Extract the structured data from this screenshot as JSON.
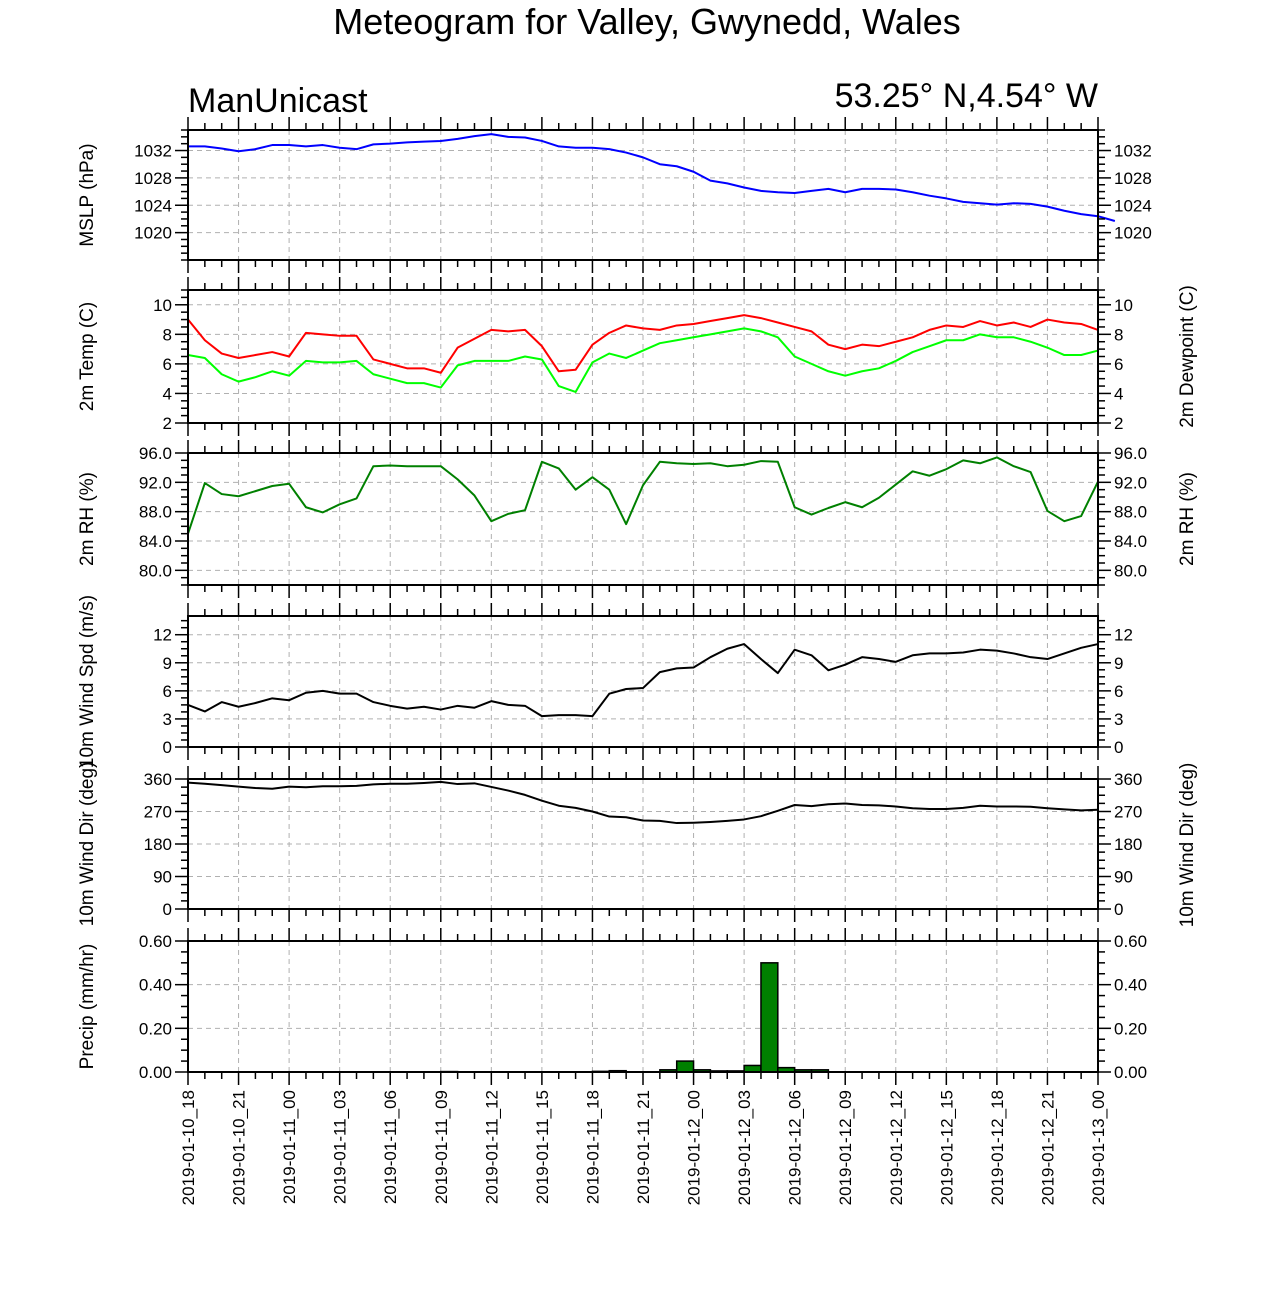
{
  "title": "Meteogram for Valley, Gwynedd, Wales",
  "model_label": "ManUnicast",
  "location_label": "53.25° N,4.54° W",
  "x_tick_labels": [
    "2019-01-10_18",
    "2019-01-10_21",
    "2019-01-11_00",
    "2019-01-11_03",
    "2019-01-11_06",
    "2019-01-11_09",
    "2019-01-11_12",
    "2019-01-11_15",
    "2019-01-11_18",
    "2019-01-11_21",
    "2019-01-12_00",
    "2019-01-12_03",
    "2019-01-12_06",
    "2019-01-12_09",
    "2019-01-12_12",
    "2019-01-12_15",
    "2019-01-12_18",
    "2019-01-12_21",
    "2019-01-13_00"
  ],
  "chart_data": [
    {
      "type": "line",
      "ylabel": "MSLP (hPa)",
      "ylim": [
        1016,
        1035
      ],
      "yticks": [
        1020,
        1024,
        1028,
        1032
      ],
      "ytick_labels": [
        "1020",
        "1024",
        "1028",
        "1032"
      ],
      "grid": true,
      "series": [
        {
          "color": "#0000ff",
          "values": [
            1032.6,
            1032.6,
            1032.3,
            1031.9,
            1032.2,
            1032.8,
            1032.8,
            1032.6,
            1032.8,
            1032.4,
            1032.2,
            1032.9,
            1033.0,
            1033.2,
            1033.3,
            1033.4,
            1033.7,
            1034.1,
            1034.4,
            1034.0,
            1033.9,
            1033.4,
            1032.6,
            1032.4,
            1032.4,
            1032.2,
            1031.7,
            1031.0,
            1030.0,
            1029.7,
            1028.9,
            1027.6,
            1027.2,
            1026.6,
            1026.1,
            1025.9,
            1025.8,
            1026.1,
            1026.4,
            1025.9,
            1026.4,
            1026.4,
            1026.3,
            1025.9,
            1025.4,
            1025.0,
            1024.5,
            1024.3,
            1024.1,
            1024.3,
            1024.2,
            1023.8,
            1023.2,
            1022.7,
            1022.4,
            1021.7
          ]
        }
      ]
    },
    {
      "type": "line",
      "ylabel": "2m Temp (C)",
      "ylabel_right": "2m Dewpoint (C)",
      "ylim": [
        2,
        11
      ],
      "yticks": [
        2,
        4,
        6,
        8,
        10
      ],
      "ytick_labels": [
        "2",
        "4",
        "6",
        "8",
        "10"
      ],
      "grid": true,
      "series": [
        {
          "color": "#ff0000",
          "values": [
            9.0,
            7.6,
            6.7,
            6.4,
            6.6,
            6.8,
            6.5,
            8.1,
            8.0,
            7.9,
            7.9,
            6.3,
            6.0,
            5.7,
            5.7,
            5.4,
            7.1,
            7.7,
            8.3,
            8.2,
            8.3,
            7.2,
            5.5,
            5.6,
            7.3,
            8.1,
            8.6,
            8.4,
            8.3,
            8.6,
            8.7,
            8.9,
            9.1,
            9.3,
            9.1,
            8.8,
            8.5,
            8.2,
            7.3,
            7.0,
            7.3,
            7.2,
            7.5,
            7.8,
            8.3,
            8.6,
            8.5,
            8.9,
            8.6,
            8.8,
            8.5,
            9.0,
            8.8,
            8.7,
            8.3
          ]
        },
        {
          "color": "#00ff00",
          "values": [
            6.6,
            6.4,
            5.3,
            4.8,
            5.1,
            5.5,
            5.2,
            6.2,
            6.1,
            6.1,
            6.2,
            5.3,
            5.0,
            4.7,
            4.7,
            4.4,
            5.9,
            6.2,
            6.2,
            6.2,
            6.5,
            6.3,
            4.5,
            4.1,
            6.1,
            6.7,
            6.4,
            6.9,
            7.4,
            7.6,
            7.8,
            8.0,
            8.2,
            8.4,
            8.2,
            7.8,
            6.5,
            6.0,
            5.5,
            5.2,
            5.5,
            5.7,
            6.2,
            6.8,
            7.2,
            7.6,
            7.6,
            8.0,
            7.8,
            7.8,
            7.5,
            7.1,
            6.6,
            6.6,
            6.9
          ]
        }
      ]
    },
    {
      "type": "line",
      "ylabel": "2m RH (%)",
      "ylim": [
        78,
        96
      ],
      "yticks": [
        80,
        84,
        88,
        92,
        96
      ],
      "ytick_labels": [
        "80.0",
        "84.0",
        "88.0",
        "92.0",
        "96.0"
      ],
      "grid": true,
      "series": [
        {
          "color": "#008000",
          "values": [
            85.0,
            91.9,
            90.4,
            90.1,
            90.8,
            91.5,
            91.8,
            88.6,
            87.9,
            89.0,
            89.8,
            94.2,
            94.3,
            94.2,
            94.2,
            94.2,
            92.4,
            90.2,
            86.7,
            87.7,
            88.2,
            94.8,
            93.9,
            91.0,
            92.7,
            91.0,
            86.3,
            91.6,
            94.8,
            94.6,
            94.5,
            94.6,
            94.2,
            94.4,
            94.9,
            94.8,
            88.6,
            87.6,
            88.5,
            89.3,
            88.6,
            89.9,
            91.7,
            93.5,
            92.9,
            93.8,
            95.0,
            94.6,
            95.4,
            94.2,
            93.4,
            88.1,
            86.7,
            87.4,
            92.1
          ]
        }
      ]
    },
    {
      "type": "line",
      "ylabel": "10m Wind Spd (m/s)",
      "ylim": [
        0,
        14
      ],
      "yticks": [
        0,
        3,
        6,
        9,
        12
      ],
      "ytick_labels": [
        "0",
        "3",
        "6",
        "9",
        "12"
      ],
      "grid": true,
      "series": [
        {
          "color": "#000000",
          "values": [
            4.5,
            3.8,
            4.8,
            4.3,
            4.7,
            5.2,
            5.0,
            5.8,
            6.0,
            5.7,
            5.7,
            4.8,
            4.4,
            4.1,
            4.3,
            4.0,
            4.4,
            4.2,
            4.9,
            4.5,
            4.4,
            3.3,
            3.4,
            3.4,
            3.3,
            5.7,
            6.2,
            6.3,
            8.0,
            8.4,
            8.5,
            9.6,
            10.5,
            11.0,
            9.4,
            7.9,
            10.4,
            9.8,
            8.2,
            8.8,
            9.6,
            9.4,
            9.1,
            9.8,
            10.0,
            10.0,
            10.1,
            10.4,
            10.3,
            10.0,
            9.6,
            9.4,
            10.0,
            10.6,
            11.0
          ]
        }
      ]
    },
    {
      "type": "line",
      "ylabel": "10m Wind Dir (deg)",
      "ylim": [
        0,
        360
      ],
      "yticks": [
        0,
        90,
        180,
        270,
        360
      ],
      "ytick_labels": [
        "0",
        "90",
        "180",
        "270",
        "360"
      ],
      "grid": true,
      "series": [
        {
          "color": "#000000",
          "values": [
            350,
            347,
            343,
            339,
            335,
            333,
            339,
            337,
            340,
            340,
            341,
            345,
            347,
            347,
            349,
            352,
            346,
            348,
            338,
            328,
            316,
            300,
            286,
            280,
            270,
            256,
            254,
            245,
            244,
            238,
            239,
            241,
            244,
            248,
            257,
            272,
            288,
            285,
            290,
            292,
            288,
            287,
            284,
            279,
            277,
            277,
            280,
            286,
            284,
            284,
            283,
            279,
            276,
            273,
            275
          ]
        }
      ]
    },
    {
      "type": "bar",
      "ylabel": "Precip (mm/hr)",
      "ylim": [
        0,
        0.6
      ],
      "yticks": [
        0.0,
        0.2,
        0.4,
        0.6
      ],
      "ytick_labels": [
        "0.00",
        "0.20",
        "0.40",
        "0.60"
      ],
      "grid": true,
      "bar_color": "#008000",
      "bar_start_hour": 0,
      "values": [
        0,
        0,
        0,
        0,
        0,
        0,
        0,
        0,
        0,
        0,
        0,
        0,
        0,
        0,
        0,
        0.002,
        0,
        0,
        0,
        0,
        0,
        0,
        0,
        0,
        0.003,
        0.006,
        0,
        0,
        0.01,
        0.05,
        0.01,
        0.005,
        0.005,
        0.03,
        0.5,
        0.02,
        0.01,
        0.01,
        0,
        0,
        0,
        0,
        0,
        0,
        0,
        0,
        0,
        0,
        0,
        0,
        0,
        0,
        0,
        0,
        0
      ]
    }
  ]
}
